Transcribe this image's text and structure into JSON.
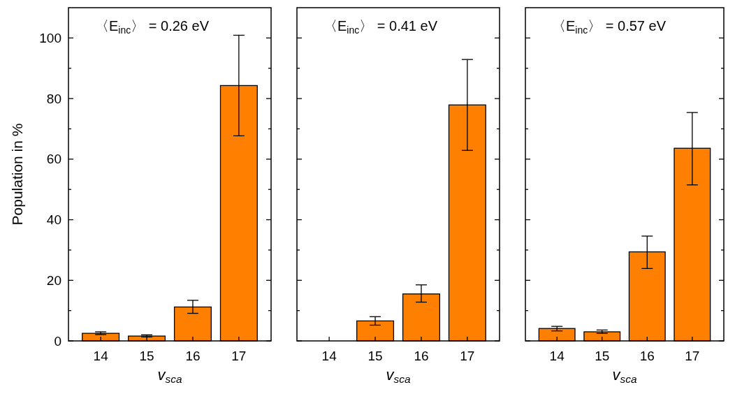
{
  "chart_data": [
    {
      "type": "bar",
      "title": "〈E$_{inc}$〉 = 0.26 eV",
      "xlabel": "v$_{sca}$",
      "ylabel": "Population in %",
      "categories": [
        "14",
        "15",
        "16",
        "17"
      ],
      "values": [
        2.5,
        1.6,
        11.2,
        84.3
      ],
      "errors": [
        [
          2.1,
          3.0
        ],
        [
          1.3,
          2.0
        ],
        [
          9.1,
          13.4
        ],
        [
          67.7,
          100.9
        ]
      ],
      "color": "#ff7f00",
      "ylim": [
        0,
        110
      ],
      "yticks": [
        0,
        {
          "value": 10,
          "label": null
        },
        20,
        {
          "value": 30,
          "label": null
        },
        40,
        {
          "value": 50,
          "label": null
        },
        60,
        {
          "value": 70,
          "label": null
        },
        80,
        {
          "value": 90,
          "label": null
        },
        100
      ],
      "grid": false
    },
    {
      "type": "bar",
      "title": "〈E$_{inc}$〉 = 0.41 eV",
      "xlabel": "v$_{sca}$",
      "categories": [
        "14",
        "15",
        "16",
        "17"
      ],
      "values": [
        null,
        6.6,
        15.5,
        77.9
      ],
      "errors": [
        null,
        [
          5.2,
          8.0
        ],
        [
          12.8,
          18.5
        ],
        [
          62.9,
          92.9
        ]
      ],
      "color": "#ff7f00",
      "ylim": [
        0,
        110
      ],
      "yticks": [
        0,
        {
          "value": 10,
          "label": null
        },
        20,
        {
          "value": 30,
          "label": null
        },
        40,
        {
          "value": 50,
          "label": null
        },
        60,
        {
          "value": 70,
          "label": null
        },
        80,
        {
          "value": 90,
          "label": null
        },
        100
      ],
      "tick_labels": "x",
      "grid": false
    },
    {
      "type": "bar",
      "title": "〈E$_{inc}$〉 = 0.57 eV",
      "xlabel": "v$_{sca}$",
      "categories": [
        "14",
        "15",
        "16",
        "17"
      ],
      "values": [
        4.1,
        3.0,
        29.4,
        63.6
      ],
      "errors": [
        [
          3.3,
          4.8
        ],
        [
          2.5,
          3.6
        ],
        [
          23.9,
          34.6
        ],
        [
          51.5,
          75.4
        ]
      ],
      "color": "#ff7f00",
      "ylim": [
        0,
        110
      ],
      "yticks": [
        0,
        {
          "value": 10,
          "label": null
        },
        20,
        {
          "value": 30,
          "label": null
        },
        40,
        {
          "value": 50,
          "label": null
        },
        60,
        {
          "value": 70,
          "label": null
        },
        80,
        {
          "value": 90,
          "label": null
        },
        100
      ],
      "tick_labels": "x",
      "grid": false
    }
  ]
}
